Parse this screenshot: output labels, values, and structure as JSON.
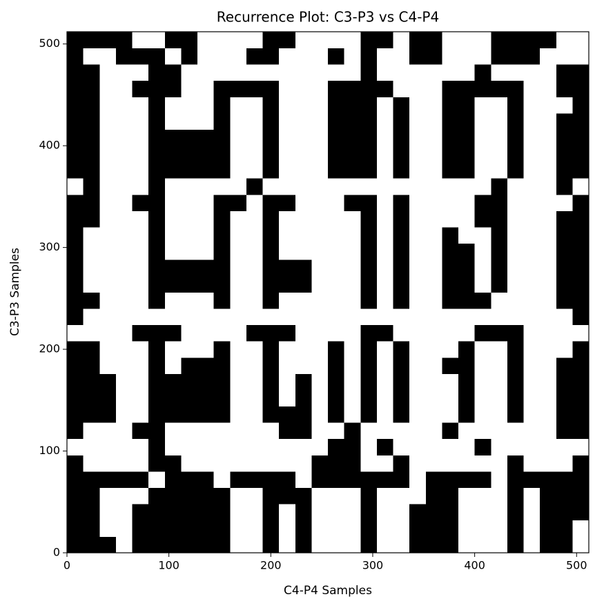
{
  "chart_data": {
    "type": "heatmap",
    "title": "Recurrence Plot: C3-P3 vs C4-P4",
    "xlabel": "C4-P4 Samples",
    "ylabel": "C3-P3 Samples",
    "xlim": [
      0,
      512
    ],
    "ylim": [
      0,
      512
    ],
    "xticks": [
      0,
      100,
      200,
      300,
      400,
      500
    ],
    "yticks": [
      0,
      100,
      200,
      300,
      400,
      500
    ],
    "colors": [
      "#ffffff",
      "#000000"
    ],
    "z": [
      [
        1,
        1,
        1,
        0,
        1,
        1,
        1,
        1,
        1,
        1,
        0,
        0,
        1,
        0,
        1,
        0,
        0,
        0,
        1,
        0,
        0,
        1,
        1,
        1,
        0,
        0,
        0,
        1,
        0,
        1,
        1,
        0
      ],
      [
        1,
        1,
        0,
        0,
        1,
        1,
        1,
        1,
        1,
        1,
        0,
        0,
        1,
        0,
        1,
        0,
        0,
        0,
        1,
        0,
        0,
        1,
        1,
        1,
        0,
        0,
        0,
        1,
        0,
        1,
        1,
        0
      ],
      [
        1,
        1,
        0,
        0,
        1,
        1,
        1,
        1,
        1,
        1,
        0,
        0,
        1,
        0,
        1,
        0,
        0,
        0,
        1,
        0,
        0,
        1,
        1,
        1,
        0,
        0,
        0,
        1,
        0,
        1,
        1,
        1
      ],
      [
        1,
        1,
        0,
        0,
        0,
        1,
        1,
        1,
        1,
        1,
        0,
        0,
        1,
        1,
        1,
        0,
        0,
        0,
        1,
        0,
        0,
        0,
        1,
        1,
        0,
        0,
        0,
        1,
        0,
        1,
        1,
        1
      ],
      [
        1,
        1,
        1,
        1,
        1,
        0,
        1,
        1,
        1,
        0,
        1,
        1,
        1,
        1,
        0,
        1,
        1,
        1,
        1,
        1,
        1,
        0,
        1,
        1,
        1,
        1,
        0,
        1,
        1,
        1,
        1,
        1
      ],
      [
        1,
        0,
        0,
        0,
        0,
        1,
        1,
        0,
        0,
        0,
        0,
        0,
        0,
        0,
        0,
        1,
        1,
        1,
        0,
        0,
        1,
        0,
        0,
        0,
        0,
        0,
        0,
        1,
        0,
        0,
        0,
        1
      ],
      [
        0,
        0,
        0,
        0,
        0,
        1,
        0,
        0,
        0,
        0,
        0,
        0,
        0,
        0,
        0,
        0,
        1,
        1,
        0,
        1,
        0,
        0,
        0,
        0,
        0,
        1,
        0,
        0,
        0,
        0,
        0,
        0
      ],
      [
        1,
        0,
        0,
        0,
        1,
        1,
        0,
        0,
        0,
        0,
        0,
        0,
        0,
        1,
        1,
        0,
        0,
        1,
        0,
        0,
        0,
        0,
        0,
        1,
        0,
        0,
        0,
        0,
        0,
        0,
        1,
        1
      ],
      [
        1,
        1,
        1,
        0,
        0,
        1,
        1,
        1,
        1,
        1,
        0,
        0,
        1,
        1,
        1,
        0,
        1,
        0,
        1,
        0,
        1,
        0,
        0,
        0,
        1,
        0,
        0,
        1,
        0,
        0,
        1,
        1
      ],
      [
        1,
        1,
        1,
        0,
        0,
        1,
        1,
        1,
        1,
        1,
        0,
        0,
        1,
        0,
        1,
        0,
        1,
        0,
        1,
        0,
        1,
        0,
        0,
        0,
        1,
        0,
        0,
        1,
        0,
        0,
        1,
        1
      ],
      [
        1,
        1,
        1,
        0,
        0,
        1,
        1,
        1,
        1,
        1,
        0,
        0,
        1,
        0,
        1,
        0,
        1,
        0,
        1,
        0,
        1,
        0,
        0,
        0,
        1,
        0,
        0,
        1,
        0,
        0,
        1,
        1
      ],
      [
        1,
        1,
        0,
        0,
        0,
        1,
        0,
        1,
        1,
        1,
        0,
        0,
        1,
        0,
        0,
        0,
        1,
        0,
        1,
        0,
        1,
        0,
        0,
        1,
        1,
        0,
        0,
        1,
        0,
        0,
        1,
        1
      ],
      [
        1,
        1,
        0,
        0,
        0,
        1,
        0,
        0,
        0,
        1,
        0,
        0,
        1,
        0,
        0,
        0,
        1,
        0,
        1,
        0,
        1,
        0,
        0,
        0,
        1,
        0,
        0,
        1,
        0,
        0,
        0,
        1
      ],
      [
        0,
        0,
        0,
        0,
        1,
        1,
        1,
        0,
        0,
        0,
        0,
        1,
        1,
        1,
        0,
        0,
        0,
        0,
        1,
        1,
        0,
        0,
        0,
        0,
        0,
        1,
        1,
        1,
        0,
        0,
        0,
        0
      ],
      [
        1,
        0,
        0,
        0,
        0,
        0,
        0,
        0,
        0,
        0,
        0,
        0,
        0,
        0,
        0,
        0,
        0,
        0,
        0,
        0,
        0,
        0,
        0,
        0,
        0,
        0,
        0,
        0,
        0,
        0,
        0,
        1
      ],
      [
        1,
        1,
        0,
        0,
        0,
        1,
        0,
        0,
        0,
        1,
        0,
        0,
        1,
        0,
        0,
        0,
        0,
        0,
        1,
        0,
        1,
        0,
        0,
        1,
        1,
        1,
        0,
        0,
        0,
        0,
        1,
        1
      ],
      [
        1,
        0,
        0,
        0,
        0,
        1,
        1,
        1,
        1,
        1,
        0,
        0,
        1,
        1,
        1,
        0,
        0,
        0,
        1,
        0,
        1,
        0,
        0,
        1,
        1,
        0,
        1,
        0,
        0,
        0,
        1,
        1
      ],
      [
        1,
        0,
        0,
        0,
        0,
        1,
        1,
        1,
        1,
        1,
        0,
        0,
        1,
        1,
        1,
        0,
        0,
        0,
        1,
        0,
        1,
        0,
        0,
        1,
        1,
        0,
        1,
        0,
        0,
        0,
        1,
        1
      ],
      [
        1,
        0,
        0,
        0,
        0,
        1,
        0,
        0,
        0,
        1,
        0,
        0,
        1,
        0,
        0,
        0,
        0,
        0,
        1,
        0,
        1,
        0,
        0,
        1,
        1,
        0,
        1,
        0,
        0,
        0,
        1,
        1
      ],
      [
        1,
        0,
        0,
        0,
        0,
        1,
        0,
        0,
        0,
        1,
        0,
        0,
        1,
        0,
        0,
        0,
        0,
        0,
        1,
        0,
        1,
        0,
        0,
        1,
        0,
        0,
        1,
        0,
        0,
        0,
        1,
        1
      ],
      [
        1,
        1,
        0,
        0,
        0,
        1,
        0,
        0,
        0,
        1,
        0,
        0,
        1,
        0,
        0,
        0,
        0,
        0,
        1,
        0,
        1,
        0,
        0,
        0,
        0,
        1,
        1,
        0,
        0,
        0,
        1,
        1
      ],
      [
        1,
        1,
        0,
        0,
        1,
        1,
        0,
        0,
        0,
        1,
        1,
        0,
        1,
        1,
        0,
        0,
        0,
        1,
        1,
        0,
        1,
        0,
        0,
        0,
        0,
        1,
        1,
        0,
        0,
        0,
        0,
        1
      ],
      [
        0,
        1,
        0,
        0,
        0,
        1,
        0,
        0,
        0,
        0,
        0,
        1,
        0,
        0,
        0,
        0,
        0,
        0,
        0,
        0,
        0,
        0,
        0,
        0,
        0,
        0,
        1,
        0,
        0,
        0,
        1,
        0
      ],
      [
        1,
        1,
        0,
        0,
        0,
        1,
        1,
        1,
        1,
        1,
        0,
        0,
        1,
        0,
        0,
        0,
        1,
        1,
        1,
        0,
        1,
        0,
        0,
        1,
        1,
        0,
        0,
        1,
        0,
        0,
        1,
        1
      ],
      [
        1,
        1,
        0,
        0,
        0,
        1,
        1,
        1,
        1,
        1,
        0,
        0,
        1,
        0,
        0,
        0,
        1,
        1,
        1,
        0,
        1,
        0,
        0,
        1,
        1,
        0,
        0,
        1,
        0,
        0,
        1,
        1
      ],
      [
        1,
        1,
        0,
        0,
        0,
        1,
        1,
        1,
        1,
        1,
        0,
        0,
        1,
        0,
        0,
        0,
        1,
        1,
        1,
        0,
        1,
        0,
        0,
        1,
        1,
        0,
        0,
        1,
        0,
        0,
        1,
        1
      ],
      [
        1,
        1,
        0,
        0,
        0,
        1,
        0,
        0,
        0,
        1,
        0,
        0,
        1,
        0,
        0,
        0,
        1,
        1,
        1,
        0,
        1,
        0,
        0,
        1,
        1,
        0,
        0,
        1,
        0,
        0,
        1,
        1
      ],
      [
        1,
        1,
        0,
        0,
        0,
        1,
        0,
        0,
        0,
        1,
        0,
        0,
        1,
        0,
        0,
        0,
        1,
        1,
        1,
        0,
        1,
        0,
        0,
        1,
        1,
        0,
        0,
        1,
        0,
        0,
        0,
        1
      ],
      [
        1,
        1,
        0,
        0,
        1,
        1,
        1,
        0,
        0,
        1,
        1,
        1,
        1,
        0,
        0,
        0,
        1,
        1,
        1,
        1,
        0,
        0,
        0,
        1,
        1,
        1,
        1,
        1,
        0,
        0,
        1,
        1
      ],
      [
        1,
        1,
        0,
        0,
        0,
        1,
        1,
        0,
        0,
        0,
        0,
        0,
        0,
        0,
        0,
        0,
        0,
        0,
        1,
        0,
        0,
        0,
        0,
        0,
        0,
        1,
        0,
        0,
        0,
        0,
        1,
        1
      ],
      [
        1,
        0,
        0,
        1,
        1,
        1,
        0,
        1,
        0,
        0,
        0,
        1,
        1,
        0,
        0,
        0,
        1,
        0,
        1,
        0,
        0,
        1,
        1,
        0,
        0,
        0,
        1,
        1,
        1,
        0,
        0,
        0
      ],
      [
        1,
        1,
        1,
        1,
        0,
        0,
        1,
        1,
        0,
        0,
        0,
        0,
        1,
        1,
        0,
        0,
        0,
        0,
        1,
        1,
        0,
        1,
        1,
        0,
        0,
        0,
        1,
        1,
        1,
        1,
        0,
        0
      ]
    ]
  }
}
